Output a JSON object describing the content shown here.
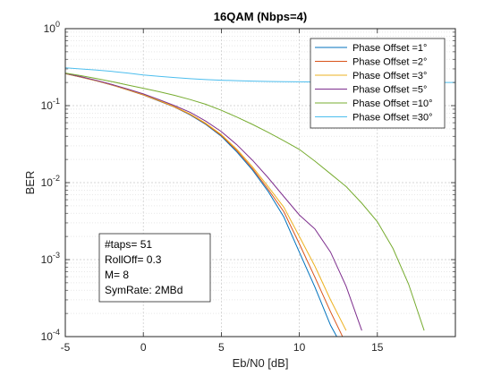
{
  "chart_data": {
    "type": "line",
    "title": "16QAM (Nbps=4)",
    "xlabel": "Eb/N0 [dB]",
    "ylabel": "BER",
    "xlim": [
      -5,
      20
    ],
    "ylim": [
      0.0001,
      1
    ],
    "yscale": "log",
    "grid": true,
    "legend_position": "top-right",
    "x_ticks": [
      "-5",
      "0",
      "5",
      "10",
      "15"
    ],
    "y_ticks": [
      {
        "base": "10",
        "exp": "-4"
      },
      {
        "base": "10",
        "exp": "-3"
      },
      {
        "base": "10",
        "exp": "-2"
      },
      {
        "base": "10",
        "exp": "-1"
      },
      {
        "base": "10",
        "exp": "0"
      }
    ],
    "x": [
      -5,
      -4,
      -3,
      -2,
      -1,
      0,
      1,
      2,
      3,
      4,
      5,
      6,
      7,
      8,
      9,
      10,
      11,
      12,
      13,
      14,
      15,
      16,
      17,
      18,
      19,
      20
    ],
    "series": [
      {
        "name": "Phase Offset =1°",
        "color": "#0072BD",
        "values": [
          0.26,
          0.235,
          0.21,
          0.185,
          0.16,
          0.138,
          0.115,
          0.096,
          0.076,
          0.057,
          0.04,
          0.025,
          0.0145,
          0.0077,
          0.0036,
          0.00125,
          0.00044,
          0.00014,
          6e-05,
          null,
          null,
          null,
          null,
          null,
          null,
          null
        ]
      },
      {
        "name": "Phase Offset =2°",
        "color": "#D95319",
        "values": [
          0.26,
          0.235,
          0.21,
          0.185,
          0.16,
          0.138,
          0.116,
          0.096,
          0.077,
          0.058,
          0.041,
          0.026,
          0.0152,
          0.0082,
          0.0042,
          0.0016,
          0.00059,
          0.00021,
          8e-05,
          null,
          null,
          null,
          null,
          null,
          null,
          null
        ]
      },
      {
        "name": "Phase Offset =3°",
        "color": "#EDB120",
        "values": [
          0.26,
          0.236,
          0.211,
          0.186,
          0.161,
          0.139,
          0.117,
          0.097,
          0.078,
          0.059,
          0.042,
          0.027,
          0.016,
          0.0089,
          0.0048,
          0.002,
          0.00082,
          0.0003,
          0.00012,
          null,
          null,
          null,
          null,
          null,
          null,
          null
        ]
      },
      {
        "name": "Phase Offset =5°",
        "color": "#7E2F8E",
        "values": [
          0.262,
          0.238,
          0.213,
          0.188,
          0.164,
          0.142,
          0.12,
          0.1,
          0.082,
          0.063,
          0.046,
          0.031,
          0.0195,
          0.0116,
          0.0066,
          0.0038,
          0.0025,
          0.00125,
          0.00045,
          0.00012,
          null,
          null,
          null,
          null,
          null,
          null
        ]
      },
      {
        "name": "Phase Offset =10°",
        "color": "#77AC30",
        "values": [
          0.265,
          0.245,
          0.225,
          0.205,
          0.185,
          0.168,
          0.152,
          0.136,
          0.12,
          0.104,
          0.087,
          0.071,
          0.057,
          0.045,
          0.035,
          0.027,
          0.019,
          0.013,
          0.0089,
          0.0054,
          0.0031,
          0.0014,
          0.00048,
          0.00012,
          null,
          null
        ]
      },
      {
        "name": "Phase Offset =30°",
        "color": "#4DBEEE",
        "values": [
          0.31,
          0.3,
          0.29,
          0.278,
          0.265,
          0.25,
          0.24,
          0.232,
          0.224,
          0.218,
          0.214,
          0.211,
          0.208,
          0.206,
          0.205,
          0.204,
          0.203,
          0.203,
          0.202,
          0.202,
          0.201,
          0.201,
          0.201,
          0.2,
          0.2,
          0.2
        ]
      }
    ],
    "annotation": {
      "lines": [
        "#taps= 51",
        "RollOff= 0.3",
        "M= 8",
        "SymRate: 2MBd"
      ]
    }
  }
}
